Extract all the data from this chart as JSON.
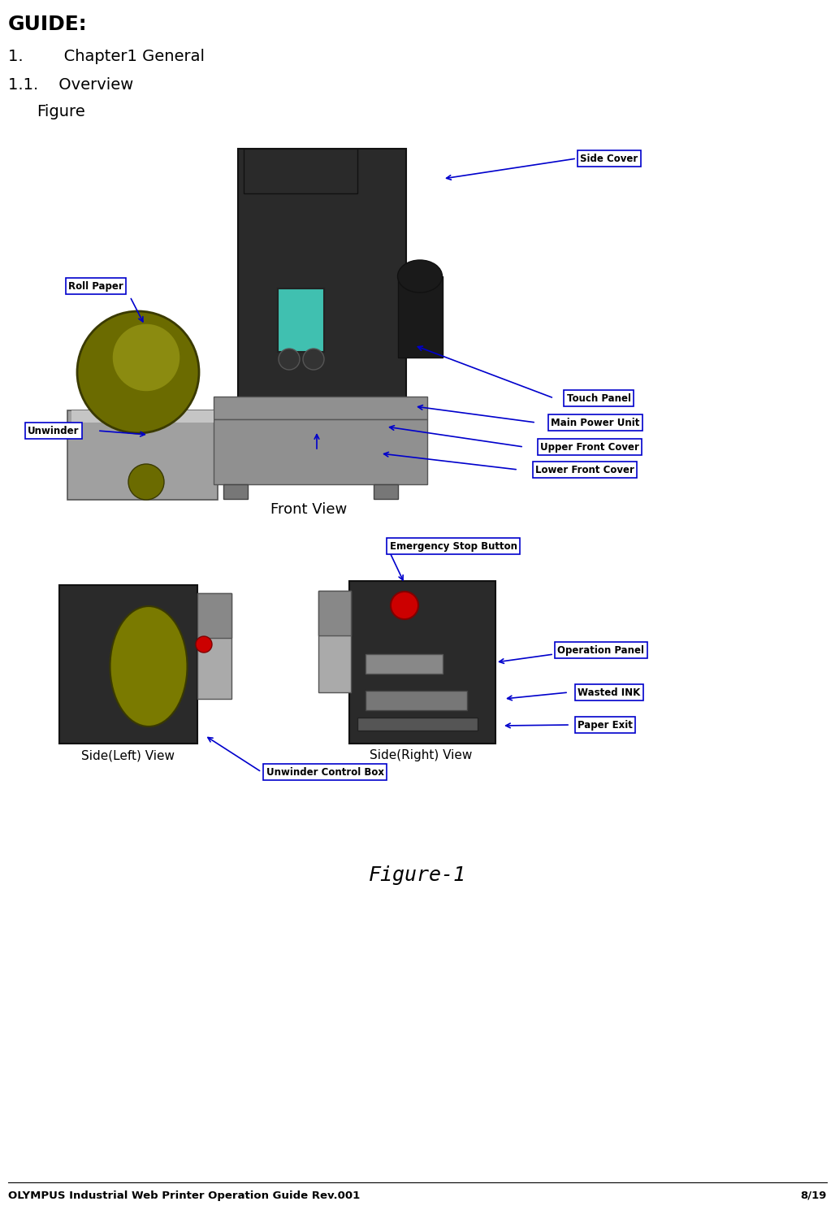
{
  "bg_color": "#ffffff",
  "title_top": "GUIDE:",
  "header1": "1.        Chapter1 General",
  "header2": "1.1.    Overview",
  "figure_label": "Figure-1",
  "footer_left": "OLYMPUS Industrial Web Printer Operation Guide Rev.001",
  "footer_right": "8/19",
  "front_view_label": "Front View",
  "side_left_label": "Side(Left) View",
  "side_right_label": "Side(Right) View"
}
